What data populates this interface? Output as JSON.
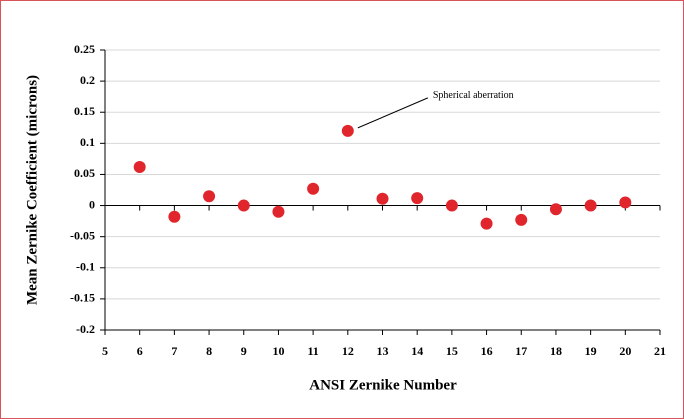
{
  "chart_data": {
    "type": "scatter",
    "xlabel": "ANSI Zernike Number",
    "ylabel": "Mean Zernike Coefficient (microns)",
    "x": [
      6,
      7,
      8,
      9,
      10,
      11,
      12,
      13,
      14,
      15,
      16,
      17,
      18,
      19,
      20
    ],
    "series": [
      {
        "color": "#e0262c",
        "values": [
          0.062,
          -0.018,
          0.015,
          0.0,
          -0.01,
          0.027,
          0.12,
          0.011,
          0.012,
          0.0,
          -0.029,
          -0.023,
          -0.006,
          0.0,
          0.005
        ]
      }
    ],
    "xlim": [
      5,
      21
    ],
    "xticks": [
      5,
      6,
      7,
      8,
      9,
      10,
      11,
      12,
      13,
      14,
      15,
      16,
      17,
      18,
      19,
      20,
      21
    ],
    "ylim": [
      -0.2,
      0.25
    ],
    "yticks": [
      0.25,
      0.2,
      0.15,
      0.1,
      0.05,
      0,
      -0.05,
      -0.1,
      -0.15,
      -0.2
    ],
    "grid": true,
    "annotations": [
      {
        "text": "Spherical aberration"
      }
    ]
  }
}
